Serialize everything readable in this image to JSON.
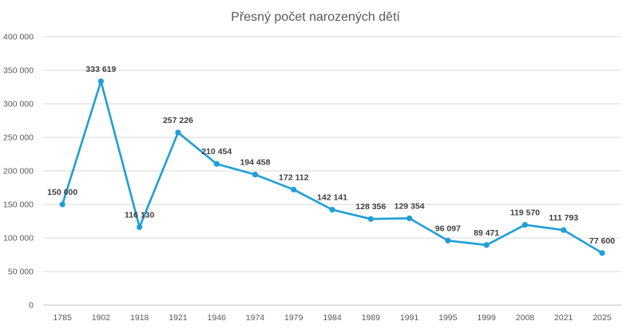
{
  "chart_data": {
    "type": "line",
    "title": "Přesný počet narozených dětí",
    "categories": [
      "1785",
      "1902",
      "1918",
      "1921",
      "1946",
      "1974",
      "1979",
      "1984",
      "1989",
      "1991",
      "1995",
      "1999",
      "2008",
      "2021",
      "2025"
    ],
    "series": [
      {
        "values": [
          150000,
          333619,
          116130,
          257226,
          210454,
          194458,
          172112,
          142141,
          128356,
          129354,
          96097,
          89471,
          119570,
          111793,
          77600
        ],
        "data_labels": [
          "150 000",
          "333 619",
          "116 130",
          "257 226",
          "210 454",
          "194 458",
          "172 112",
          "142 141",
          "128 356",
          "129 354",
          "96 097",
          "89 471",
          "119 570",
          "111 793",
          "77 600"
        ],
        "color": "#1f9fd6"
      }
    ],
    "ylim": [
      0,
      400000
    ],
    "yticks": [
      0,
      50000,
      100000,
      150000,
      200000,
      250000,
      300000,
      350000,
      400000
    ],
    "ytick_labels": [
      "0",
      "50 000",
      "100 000",
      "150 000",
      "200 000",
      "250 000",
      "300 000",
      "350 000",
      "400 000"
    ],
    "grid": true,
    "legend": "none"
  }
}
